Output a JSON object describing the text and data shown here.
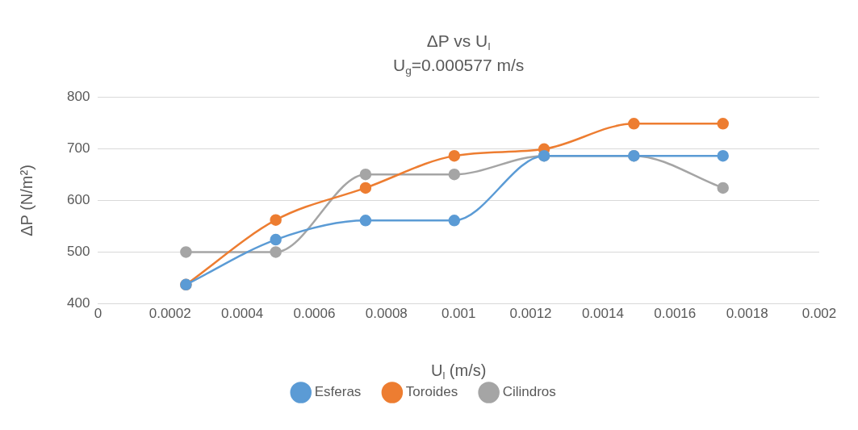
{
  "chart_data": {
    "type": "line",
    "title": "ΔP vs U$_{l}$",
    "subtitle": "U$_{g}$=0.000577 m/s",
    "xlabel": "U$_{l}$ (m/s)",
    "ylabel": "ΔP (N/m²)",
    "x": [
      0.000244,
      0.000493,
      0.000742,
      0.000988,
      0.001237,
      0.001486,
      0.001733
    ],
    "series": [
      {
        "name": "Esferas",
        "color": "#5b9bd5",
        "values": [
          437,
          524,
          561,
          561,
          686,
          686,
          686
        ]
      },
      {
        "name": "Toroides",
        "color": "#ed7d31",
        "values": [
          437,
          562,
          624,
          686,
          699,
          748,
          748
        ]
      },
      {
        "name": "Cilindros",
        "color": "#a5a5a5",
        "values": [
          500,
          500,
          650,
          650,
          686,
          686,
          624
        ]
      }
    ],
    "xlim": [
      0,
      0.002
    ],
    "xticks": [
      0,
      0.0002,
      0.0004,
      0.0006,
      0.0008,
      0.001,
      0.0012,
      0.0014,
      0.0016,
      0.0018,
      0.002
    ],
    "ylim": [
      400,
      800
    ],
    "yticks": [
      400,
      500,
      600,
      700,
      800
    ],
    "grid": "y",
    "legend": "bottom",
    "marker": "circle",
    "line_style": "solid"
  }
}
